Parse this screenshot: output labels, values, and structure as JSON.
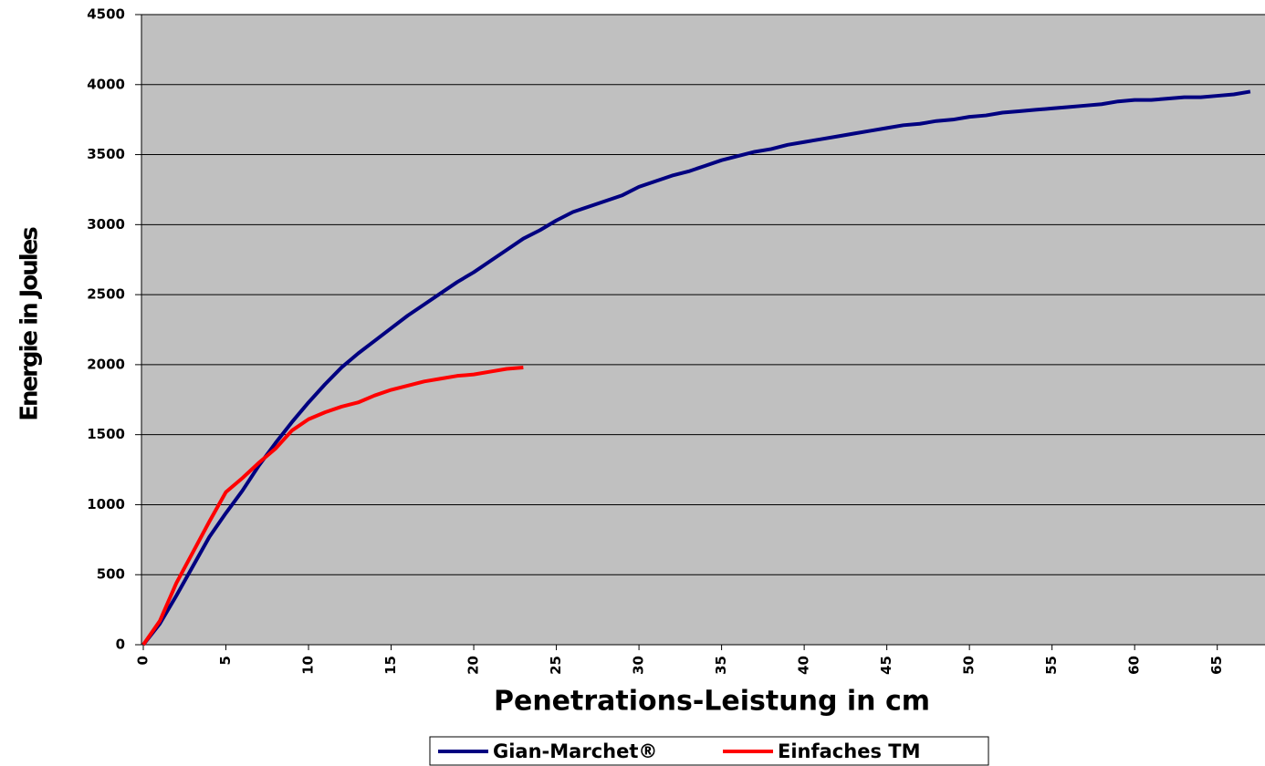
{
  "chart_data": {
    "type": "line",
    "xlabel": "Penetrations-Leistung in cm",
    "ylabel": "Energie in Joules",
    "x": [
      0,
      1,
      2,
      3,
      4,
      5,
      6,
      7,
      8,
      9,
      10,
      11,
      12,
      13,
      14,
      15,
      16,
      17,
      18,
      19,
      20,
      21,
      22,
      23,
      24,
      25,
      26,
      27,
      28,
      29,
      30,
      31,
      32,
      33,
      34,
      35,
      36,
      37,
      38,
      39,
      40,
      41,
      42,
      43,
      44,
      45,
      46,
      47,
      48,
      49,
      50,
      51,
      52,
      53,
      54,
      55,
      56,
      57,
      58,
      59,
      60,
      61,
      62,
      63,
      64,
      65,
      66,
      67
    ],
    "series": [
      {
        "name": "Gian-Marchet®",
        "color": "#000080",
        "values": [
          0,
          150,
          350,
          560,
          770,
          940,
          1100,
          1280,
          1440,
          1590,
          1730,
          1860,
          1980,
          2080,
          2170,
          2260,
          2350,
          2430,
          2510,
          2590,
          2660,
          2740,
          2820,
          2900,
          2960,
          3030,
          3090,
          3130,
          3170,
          3210,
          3270,
          3310,
          3350,
          3380,
          3420,
          3460,
          3490,
          3520,
          3540,
          3570,
          3590,
          3610,
          3630,
          3650,
          3670,
          3690,
          3710,
          3720,
          3740,
          3750,
          3770,
          3780,
          3800,
          3810,
          3820,
          3830,
          3840,
          3850,
          3860,
          3880,
          3890,
          3890,
          3900,
          3910,
          3910,
          3920,
          3930,
          3950
        ]
      },
      {
        "name": "Einfaches TM",
        "color": "#ff0000",
        "values": [
          0,
          170,
          440,
          660,
          880,
          1090,
          1190,
          1300,
          1400,
          1530,
          1610,
          1660,
          1700,
          1730,
          1780,
          1820,
          1850,
          1880,
          1900,
          1920,
          1930,
          1950,
          1970,
          1980,
          null,
          null,
          null,
          null,
          null,
          null,
          null,
          null,
          null,
          null,
          null,
          null,
          null,
          null,
          null,
          null,
          null,
          null,
          null,
          null,
          null,
          null,
          null,
          null,
          null,
          null,
          null,
          null,
          null,
          null,
          null,
          null,
          null,
          null,
          null,
          null,
          null,
          null,
          null,
          null,
          null,
          null,
          null,
          null
        ]
      }
    ],
    "xlim": [
      0,
      68
    ],
    "xticks": [
      0,
      5,
      10,
      15,
      20,
      25,
      30,
      35,
      40,
      45,
      50,
      55,
      60,
      65
    ],
    "ylim": [
      0,
      4500
    ],
    "yticks": [
      0,
      500,
      1000,
      1500,
      2000,
      2500,
      3000,
      3500,
      4000,
      4500
    ],
    "grid": true,
    "legend": "bottom",
    "background": "#c0c0c0"
  }
}
